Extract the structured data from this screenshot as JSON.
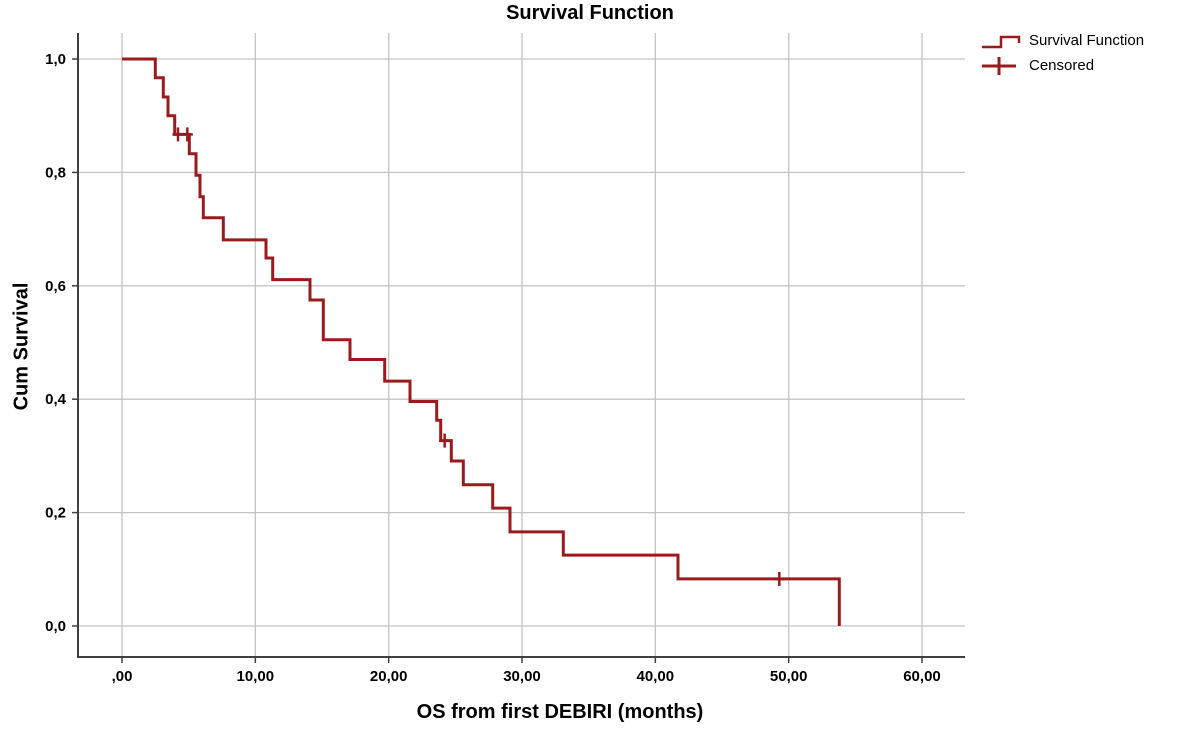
{
  "title": "Survival Function",
  "legend": {
    "items": [
      {
        "label": "Survival Function",
        "symbol": "step-line"
      },
      {
        "label": "Censored",
        "symbol": "plus"
      }
    ]
  },
  "chart_data": {
    "type": "line",
    "subtype": "kaplan-meier-step",
    "title": "Survival Function",
    "xlabel": "OS from first DEBIRI (months)",
    "ylabel": "Cum Survival",
    "xlim": [
      0,
      60
    ],
    "ylim": [
      0.0,
      1.0
    ],
    "grid": true,
    "legend_position": "top-right",
    "x_ticks": {
      "values": [
        0,
        10,
        20,
        30,
        40,
        50,
        60
      ],
      "labels": [
        ",00",
        "10,00",
        "20,00",
        "30,00",
        "40,00",
        "50,00",
        "60,00"
      ]
    },
    "y_ticks": {
      "values": [
        0.0,
        0.2,
        0.4,
        0.6,
        0.8,
        1.0
      ],
      "labels": [
        "0,0",
        "0,2",
        "0,4",
        "0,6",
        "0,8",
        "1,0"
      ]
    },
    "series": [
      {
        "name": "Survival Function",
        "step_points": [
          [
            0,
            1.0
          ],
          [
            2.5,
            1.0
          ],
          [
            2.5,
            0.967
          ],
          [
            3.1,
            0.967
          ],
          [
            3.1,
            0.933
          ],
          [
            3.45,
            0.933
          ],
          [
            3.45,
            0.9
          ],
          [
            3.95,
            0.9
          ],
          [
            3.95,
            0.867
          ],
          [
            5.05,
            0.867
          ],
          [
            5.05,
            0.833
          ],
          [
            5.55,
            0.833
          ],
          [
            5.55,
            0.795
          ],
          [
            5.85,
            0.795
          ],
          [
            5.85,
            0.757
          ],
          [
            6.1,
            0.757
          ],
          [
            6.1,
            0.72
          ],
          [
            7.6,
            0.72
          ],
          [
            7.6,
            0.681
          ],
          [
            10.8,
            0.681
          ],
          [
            10.8,
            0.649
          ],
          [
            11.3,
            0.649
          ],
          [
            11.3,
            0.611
          ],
          [
            14.1,
            0.611
          ],
          [
            14.1,
            0.575
          ],
          [
            15.1,
            0.575
          ],
          [
            15.1,
            0.505
          ],
          [
            17.1,
            0.505
          ],
          [
            17.1,
            0.47
          ],
          [
            19.7,
            0.47
          ],
          [
            19.7,
            0.432
          ],
          [
            21.6,
            0.432
          ],
          [
            21.6,
            0.396
          ],
          [
            23.6,
            0.396
          ],
          [
            23.6,
            0.363
          ],
          [
            23.9,
            0.363
          ],
          [
            23.9,
            0.327
          ],
          [
            24.7,
            0.327
          ],
          [
            24.7,
            0.291
          ],
          [
            25.6,
            0.291
          ],
          [
            25.6,
            0.249
          ],
          [
            27.8,
            0.249
          ],
          [
            27.8,
            0.208
          ],
          [
            29.1,
            0.208
          ],
          [
            29.1,
            0.166
          ],
          [
            33.1,
            0.166
          ],
          [
            33.1,
            0.125
          ],
          [
            41.7,
            0.125
          ],
          [
            41.7,
            0.083
          ],
          [
            53.8,
            0.083
          ],
          [
            53.8,
            0.0
          ]
        ]
      }
    ],
    "censored": [
      [
        4.2,
        0.867
      ],
      [
        4.9,
        0.867
      ],
      [
        24.2,
        0.327
      ],
      [
        49.3,
        0.083
      ]
    ]
  },
  "colors": {
    "curve": "#9a1b1e",
    "grid": "#c4c4c4",
    "axis": "#3f3f3f",
    "text": "#000000",
    "background": "#ffffff"
  }
}
